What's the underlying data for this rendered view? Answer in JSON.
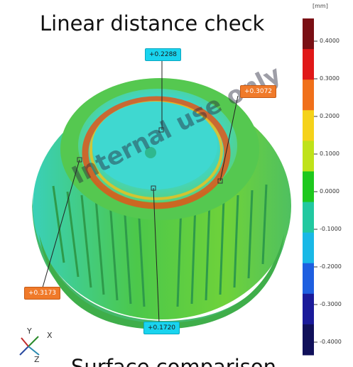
{
  "title": "Linear distance check",
  "bottom_title": "Surface comparison",
  "watermark": "Internal use only",
  "legend": {
    "unit": "[mm]",
    "ticks": [
      "0.4000",
      "0.3000",
      "0.2000",
      "0.1000",
      "0.0000",
      "-0.1000",
      "-0.2000",
      "-0.3000",
      "-0.4000"
    ],
    "colors": [
      "#7a0f14",
      "#e01818",
      "#f0701a",
      "#f5d21a",
      "#bfe21a",
      "#1ec81e",
      "#22c8a0",
      "#19b8e6",
      "#1e5fe0",
      "#1a1a9a",
      "#10105a"
    ]
  },
  "callouts": [
    {
      "label": "+0.2288",
      "color": "cyan"
    },
    {
      "label": "+0.3072",
      "color": "orange"
    },
    {
      "label": "+0.3173",
      "color": "orange"
    },
    {
      "label": "+0.1720",
      "color": "cyan"
    }
  ],
  "axes": {
    "y": "Y",
    "x": "X",
    "z": "Z"
  }
}
